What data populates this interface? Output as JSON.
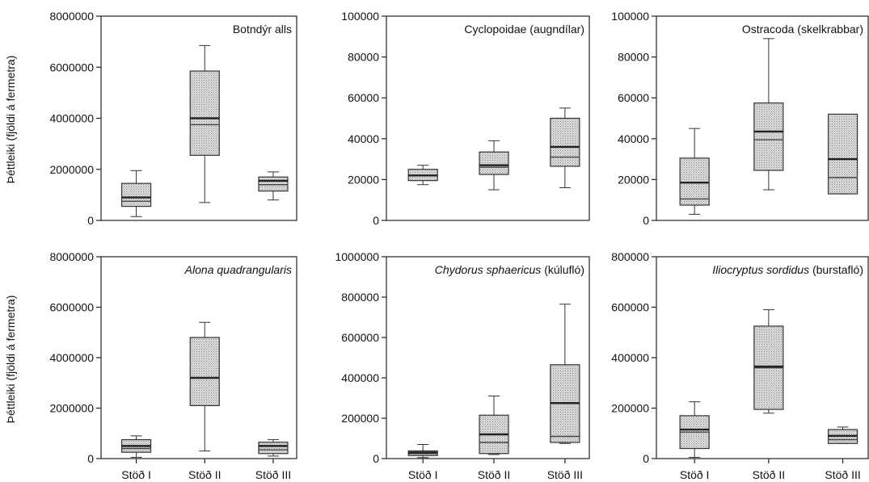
{
  "ylabel": "Þéttleiki (fjöldi á fermetra)",
  "colors": {
    "box_fill": "#d4d4d4",
    "stroke": "#333333",
    "text": "#111111"
  },
  "chart_data": [
    {
      "type": "box",
      "title": "Botndýr alls",
      "title_italic": "",
      "title_suffix": "",
      "categories": [
        "Stöð I",
        "Stöð II",
        "Stöð III"
      ],
      "ylim": [
        0,
        8000000
      ],
      "yticks": [
        0,
        2000000,
        4000000,
        6000000,
        8000000
      ],
      "ytick_labels": [
        "0",
        "2000000",
        "4000000",
        "6000000",
        "8000000"
      ],
      "boxes": [
        {
          "min": 150000,
          "q1": 550000,
          "median": 900000,
          "mean": 750000,
          "q3": 1450000,
          "max": 1950000
        },
        {
          "min": 700000,
          "q1": 2550000,
          "median": 4000000,
          "mean": 3750000,
          "q3": 5850000,
          "max": 6850000
        },
        {
          "min": 800000,
          "q1": 1150000,
          "median": 1550000,
          "mean": 1400000,
          "q3": 1700000,
          "max": 1900000
        }
      ]
    },
    {
      "type": "box",
      "title": "Cyclopoidae (augndílar)",
      "title_italic": "",
      "title_suffix": "",
      "categories": [
        "Stöð I",
        "Stöð II",
        "Stöð III"
      ],
      "ylim": [
        0,
        100000
      ],
      "yticks": [
        0,
        20000,
        40000,
        60000,
        80000,
        100000
      ],
      "ytick_labels": [
        "0",
        "20000",
        "40000",
        "60000",
        "80000",
        "100000"
      ],
      "boxes": [
        {
          "min": 17500,
          "q1": 19500,
          "median": 22000,
          "mean": 22000,
          "q3": 25000,
          "max": 27000
        },
        {
          "min": 15000,
          "q1": 22500,
          "median": 27000,
          "mean": 26000,
          "q3": 33500,
          "max": 39000
        },
        {
          "min": 16000,
          "q1": 26500,
          "median": 36000,
          "mean": 31000,
          "q3": 50000,
          "max": 55000
        }
      ]
    },
    {
      "type": "box",
      "title": "Ostracoda (skelkrabbar)",
      "title_italic": "",
      "title_suffix": "",
      "categories": [
        "Stöð I",
        "Stöð II",
        "Stöð III"
      ],
      "ylim": [
        0,
        100000
      ],
      "yticks": [
        0,
        20000,
        40000,
        60000,
        80000,
        100000
      ],
      "ytick_labels": [
        "0",
        "20000",
        "40000",
        "60000",
        "80000",
        "100000"
      ],
      "boxes": [
        {
          "min": 3000,
          "q1": 7500,
          "median": 18500,
          "mean": 10500,
          "q3": 30500,
          "max": 45000
        },
        {
          "min": 15000,
          "q1": 24500,
          "median": 43500,
          "mean": 39500,
          "q3": 57500,
          "max": 89000
        },
        {
          "min": 13000,
          "q1": 13000,
          "median": 30000,
          "mean": 21000,
          "q3": 52000,
          "max": 52000
        }
      ]
    },
    {
      "type": "box",
      "title": "",
      "title_italic": "Alona quadrangularis",
      "title_suffix": "",
      "categories": [
        "Stöð I",
        "Stöð II",
        "Stöð III"
      ],
      "ylim": [
        0,
        8000000
      ],
      "yticks": [
        0,
        2000000,
        4000000,
        6000000,
        8000000
      ],
      "ytick_labels": [
        "0",
        "2000000",
        "4000000",
        "6000000",
        "8000000"
      ],
      "boxes": [
        {
          "min": 50000,
          "q1": 250000,
          "median": 500000,
          "mean": 400000,
          "q3": 750000,
          "max": 900000
        },
        {
          "min": 300000,
          "q1": 2100000,
          "median": 3200000,
          "mean": 3200000,
          "q3": 4800000,
          "max": 5400000
        },
        {
          "min": 100000,
          "q1": 200000,
          "median": 500000,
          "mean": 350000,
          "q3": 650000,
          "max": 750000
        }
      ]
    },
    {
      "type": "box",
      "title": "",
      "title_italic": "Chydorus sphaericus",
      "title_suffix": " (kúlufló)",
      "categories": [
        "Stöð I",
        "Stöð II",
        "Stöð III"
      ],
      "ylim": [
        0,
        1000000
      ],
      "yticks": [
        0,
        200000,
        400000,
        600000,
        800000,
        1000000
      ],
      "ytick_labels": [
        "0",
        "200000",
        "400000",
        "600000",
        "800000",
        "1000000"
      ],
      "boxes": [
        {
          "min": 5000,
          "q1": 15000,
          "median": 30000,
          "mean": 25000,
          "q3": 38000,
          "max": 70000
        },
        {
          "min": 20000,
          "q1": 25000,
          "median": 120000,
          "mean": 80000,
          "q3": 215000,
          "max": 310000
        },
        {
          "min": 75000,
          "q1": 80000,
          "median": 275000,
          "mean": 110000,
          "q3": 465000,
          "max": 765000
        }
      ]
    },
    {
      "type": "box",
      "title": "",
      "title_italic": "Iliocryptus sordidus",
      "title_suffix": " (burstafló)",
      "categories": [
        "Stöð I",
        "Stöð II",
        "Stöð III"
      ],
      "ylim": [
        0,
        800000
      ],
      "yticks": [
        0,
        200000,
        400000,
        600000,
        800000
      ],
      "ytick_labels": [
        "0",
        "200000",
        "400000",
        "600000",
        "800000"
      ],
      "boxes": [
        {
          "min": 5000,
          "q1": 40000,
          "median": 115000,
          "mean": 105000,
          "q3": 170000,
          "max": 225000
        },
        {
          "min": 180000,
          "q1": 195000,
          "median": 365000,
          "mean": 360000,
          "q3": 525000,
          "max": 590000
        },
        {
          "min": 60000,
          "q1": 60000,
          "median": 90000,
          "mean": 75000,
          "q3": 115000,
          "max": 125000
        }
      ]
    }
  ]
}
